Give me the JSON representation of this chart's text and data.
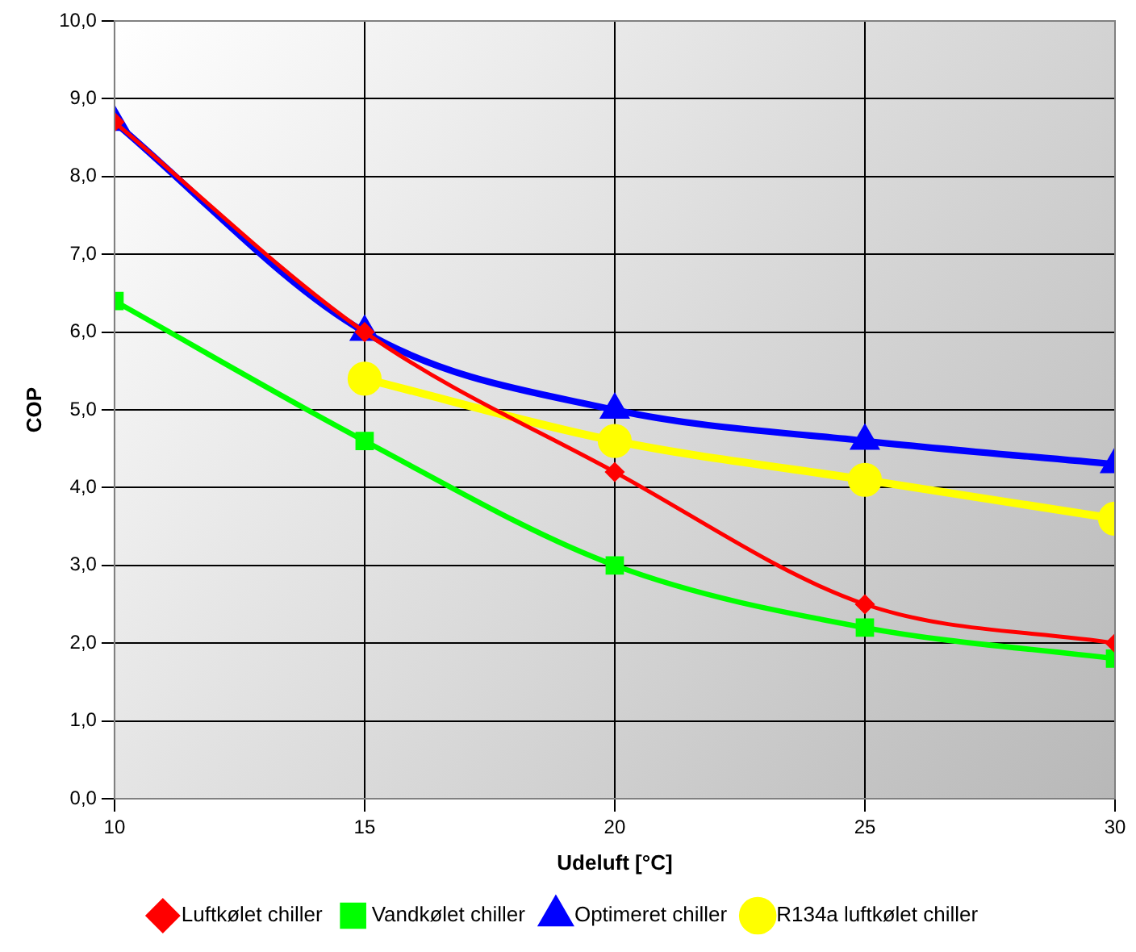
{
  "chart_data": {
    "type": "line",
    "xlabel": "Udeluft [°C]",
    "ylabel": "COP",
    "x": [
      10,
      15,
      20,
      25,
      30
    ],
    "series": [
      {
        "name": "Luftkølet chiller",
        "color": "#ff0000",
        "marker": "diamond",
        "values": [
          8.7,
          6.0,
          4.2,
          2.5,
          2.0
        ]
      },
      {
        "name": "Vandkølet chiller",
        "color": "#00ff00",
        "marker": "square",
        "values": [
          6.4,
          4.6,
          3.0,
          2.2,
          1.8
        ]
      },
      {
        "name": "Optimeret chiller",
        "color": "#0000ff",
        "marker": "triangle",
        "values": [
          8.7,
          6.0,
          5.0,
          4.6,
          4.3
        ]
      },
      {
        "name": "R134a luftkølet chiller",
        "color": "#ffff00",
        "marker": "circle",
        "x": [
          15,
          20,
          25,
          30
        ],
        "values": [
          5.4,
          4.6,
          4.1,
          3.6
        ]
      }
    ],
    "xlim": [
      10,
      30
    ],
    "xticks": [
      10,
      15,
      20,
      25,
      30
    ],
    "ylim": [
      0,
      10
    ],
    "yticks": [
      {
        "value": 0,
        "label": "0,0"
      },
      {
        "value": 1,
        "label": "1,0"
      },
      {
        "value": 2,
        "label": "2,0"
      },
      {
        "value": 3,
        "label": "3,0"
      },
      {
        "value": 4,
        "label": "4,0"
      },
      {
        "value": 5,
        "label": "5,0"
      },
      {
        "value": 6,
        "label": "6,0"
      },
      {
        "value": 7,
        "label": "7,0"
      },
      {
        "value": 8,
        "label": "8,0"
      },
      {
        "value": 9,
        "label": "9,0"
      },
      {
        "value": 10,
        "label": "10,0"
      }
    ],
    "grid": true,
    "legend": "bottom",
    "line_style": "solid"
  }
}
